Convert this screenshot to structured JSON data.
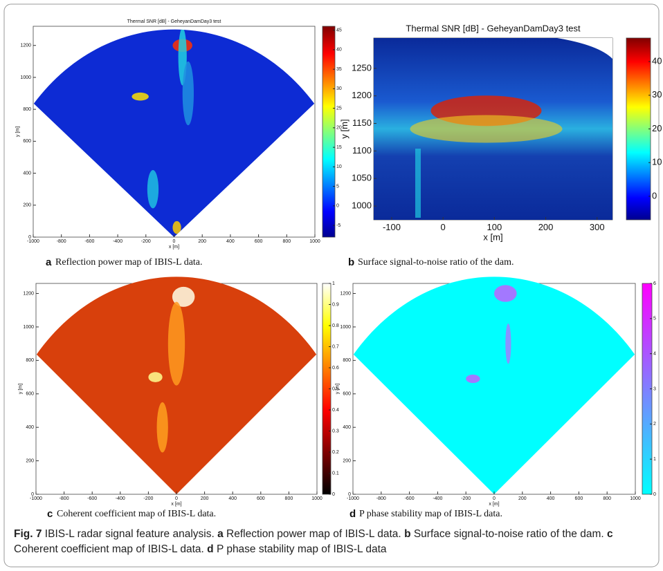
{
  "panels": [
    {
      "title": "Thermal SNR [dB] - GeheyanDamDay3 test",
      "xlabel": "x [m]",
      "ylabel": "y [m]",
      "xlim": [
        -1000,
        1000
      ],
      "ylim": [
        0,
        1320
      ],
      "xticks": [
        -1000,
        -800,
        -600,
        -400,
        -200,
        0,
        200,
        400,
        600,
        800,
        1000
      ],
      "yticks": [
        0,
        200,
        400,
        600,
        800,
        1000,
        1200
      ],
      "clim": [
        -8,
        46
      ],
      "cticks": [
        -5,
        0,
        5,
        10,
        15,
        20,
        25,
        30,
        35,
        40,
        45
      ],
      "caption": {
        "letter": "a",
        "text": "Reflection power map of IBIS-L data."
      }
    },
    {
      "title": "Thermal SNR [dB] - GeheyanDamDay3 test",
      "xlabel": "x [m]",
      "ylabel": "y [m]",
      "xlim": [
        -135,
        330
      ],
      "ylim": [
        975,
        1305
      ],
      "xticks": [
        -100,
        0,
        100,
        200,
        300
      ],
      "yticks": [
        1000,
        1050,
        1100,
        1150,
        1200,
        1250
      ],
      "clim": [
        -7,
        47
      ],
      "cticks": [
        0,
        10,
        20,
        30,
        40
      ],
      "caption": {
        "letter": "b",
        "text": "Surface signal-to-noise ratio of the dam."
      }
    },
    {
      "xlabel": "x [m]",
      "ylabel": "y [m]",
      "xlim": [
        -1000,
        1000
      ],
      "ylim": [
        0,
        1260
      ],
      "xticks": [
        -1000,
        -800,
        -600,
        -400,
        -200,
        0,
        200,
        400,
        600,
        800,
        1000
      ],
      "yticks": [
        0,
        200,
        400,
        600,
        800,
        1000,
        1200
      ],
      "clim": [
        0,
        1
      ],
      "cticks": [
        0,
        0.1,
        0.2,
        0.3,
        0.4,
        0.5,
        0.6,
        0.7,
        0.8,
        0.9,
        1
      ],
      "caption": {
        "letter": "c",
        "text": "Coherent coefficient map of IBIS-L data."
      }
    },
    {
      "xlabel": "x [m]",
      "ylabel": "y [m]",
      "xlim": [
        -1000,
        1000
      ],
      "ylim": [
        0,
        1260
      ],
      "xticks": [
        -1000,
        -800,
        -600,
        -400,
        -200,
        0,
        200,
        400,
        600,
        800,
        1000
      ],
      "yticks": [
        0,
        200,
        400,
        600,
        800,
        1000,
        1200
      ],
      "clim": [
        0,
        6
      ],
      "cticks": [
        0,
        1,
        2,
        3,
        4,
        5,
        6
      ],
      "caption": {
        "letter": "d",
        "text": "P phase stability map of IBIS-L data."
      }
    }
  ],
  "figure_caption": {
    "label": "Fig. 7",
    "intro": "IBIS-L radar signal feature analysis.",
    "segments": [
      {
        "letter": "a",
        "text": "Reflection power map of IBIS-L data."
      },
      {
        "letter": "b",
        "text": "Surface signal-to-noise ratio of the dam."
      },
      {
        "letter": "c",
        "text": "Coherent coefficient map of IBIS-L data."
      },
      {
        "letter": "d",
        "text": "P phase stability map of IBIS-L data"
      }
    ]
  }
}
